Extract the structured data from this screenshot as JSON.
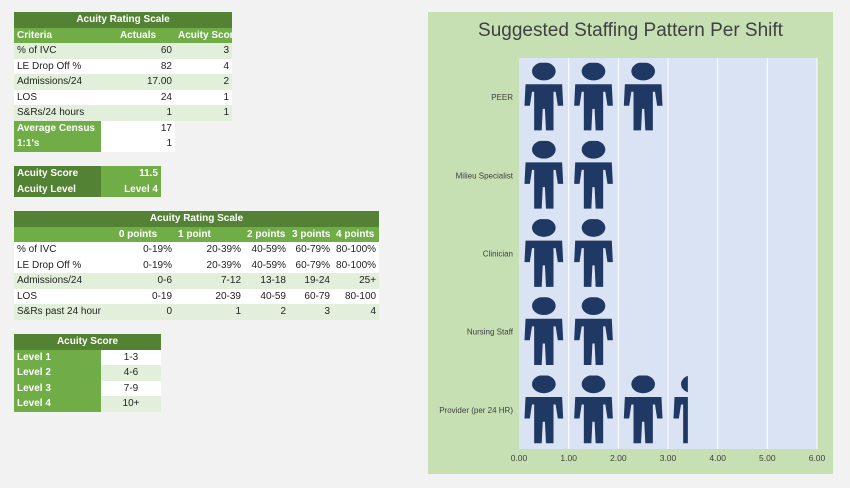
{
  "rating_table": {
    "title": "Acuity Rating Scale",
    "headers": [
      "Criteria",
      "Actuals",
      "Acuity Score"
    ],
    "rows": [
      {
        "criteria": "% of IVC",
        "actual": "60",
        "score": "3"
      },
      {
        "criteria": "LE Drop Off %",
        "actual": "82",
        "score": "4"
      },
      {
        "criteria": "Admissions/24",
        "actual": "17.00",
        "score": "2"
      },
      {
        "criteria": "LOS",
        "actual": "24",
        "score": "1"
      },
      {
        "criteria": "S&Rs/24 hours",
        "actual": "1",
        "score": "1"
      }
    ],
    "extra_rows": [
      {
        "label": "Average Census",
        "value": "17"
      },
      {
        "label": "1:1's",
        "value": "1"
      }
    ]
  },
  "acuity_result": {
    "score_label": "Acuity Score",
    "score_value": "11.5",
    "level_label": "Acuity Level",
    "level_value": "Level 4"
  },
  "scale_table": {
    "title": "Acuity Rating Scale",
    "headers": [
      "",
      "0 points",
      "1 point",
      "2 points",
      "3 points",
      "4 points"
    ],
    "rows": [
      [
        "% of IVC",
        "0-19%",
        "20-39%",
        "40-59%",
        "60-79%",
        "80-100%"
      ],
      [
        "LE Drop Off %",
        "0-19%",
        "20-39%",
        "40-59%",
        "60-79%",
        "80-100%"
      ],
      [
        "Admissions/24",
        "0-6",
        "7-12",
        "13-18",
        "19-24",
        "25+"
      ],
      [
        "LOS",
        "0-19",
        "20-39",
        "40-59",
        "60-79",
        "80-100"
      ],
      [
        "S&Rs past 24 hour",
        "0",
        "1",
        "2",
        "3",
        "4"
      ]
    ]
  },
  "score_table": {
    "title": "Acuity Score",
    "rows": [
      {
        "level": "Level 1",
        "range": "1-3"
      },
      {
        "level": "Level 2",
        "range": "4-6"
      },
      {
        "level": "Level 3",
        "range": "7-9"
      },
      {
        "level": "Level 4",
        "range": "10+"
      }
    ]
  },
  "chart_data": {
    "type": "bar",
    "orientation": "horizontal",
    "pictograph_icon": "person-icon",
    "title": "Suggested Staffing Pattern Per Shift",
    "categories": [
      "PEER",
      "Milieu Specialist",
      "Clinician",
      "Nursing Staff",
      "Provider (per 24 HR)"
    ],
    "values": [
      3.05,
      2.0,
      2.0,
      2.1,
      3.4
    ],
    "xlim": [
      0,
      6
    ],
    "xticks": [
      "0.00",
      "1.00",
      "2.00",
      "3.00",
      "4.00",
      "5.00",
      "6.00"
    ],
    "colors": {
      "panel": "#c6e0b4",
      "plot": "#dae3f3",
      "icon": "#1f3864",
      "grid": "#ffffff"
    }
  }
}
